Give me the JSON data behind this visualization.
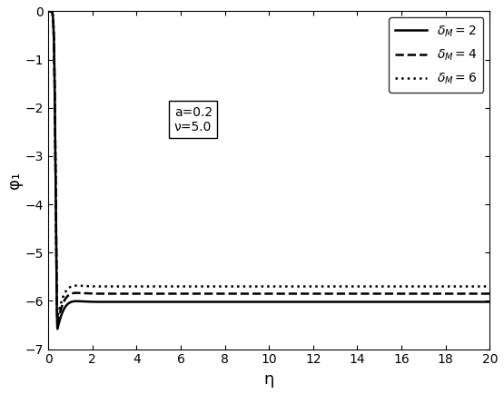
{
  "title": "",
  "xlabel": "η",
  "ylabel": "φ₁",
  "xlim": [
    0,
    20
  ],
  "ylim": [
    -7,
    0
  ],
  "xticks": [
    0,
    2,
    4,
    6,
    8,
    10,
    12,
    14,
    16,
    18,
    20
  ],
  "yticks": [
    0,
    -1,
    -2,
    -3,
    -4,
    -5,
    -6,
    -7
  ],
  "curves": [
    {
      "delta": 2,
      "style": "solid",
      "color": "#000000",
      "lw": 1.8,
      "asymptote": -6.02,
      "min_val": -6.58,
      "min_eta": 0.42
    },
    {
      "delta": 4,
      "style": "dashed",
      "color": "#000000",
      "lw": 1.8,
      "asymptote": -5.85,
      "min_val": -6.45,
      "min_eta": 0.42
    },
    {
      "delta": 6,
      "style": "dotted",
      "color": "#000000",
      "lw": 1.8,
      "asymptote": -5.7,
      "min_val": -6.35,
      "min_eta": 0.42
    }
  ],
  "annotation_text": "a=0.2\nν=5.0",
  "background_color": "#ffffff",
  "figsize": [
    5.55,
    4.34
  ],
  "dpi": 100
}
